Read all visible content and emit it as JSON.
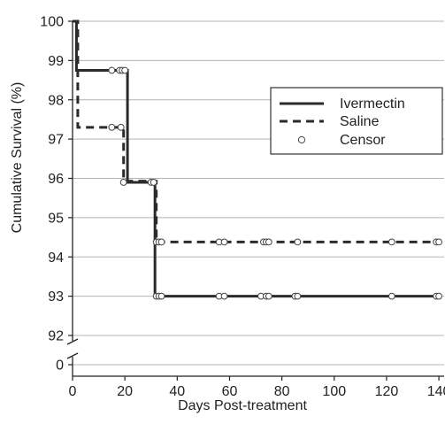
{
  "chart_data": {
    "type": "line",
    "title": "",
    "xlabel": "Days Post-treatment",
    "ylabel": "Cumulative Survival (%)",
    "xlim": [
      0,
      142
    ],
    "x_ticks": [
      0,
      20,
      40,
      60,
      80,
      100,
      120,
      140
    ],
    "y_ticks": [
      0,
      92,
      93,
      94,
      95,
      96,
      97,
      98,
      99,
      100
    ],
    "y_axis_break": {
      "between": [
        0,
        92
      ]
    },
    "grid": "horizontal",
    "legend_position": "right",
    "series": [
      {
        "name": "Ivermectin",
        "style": "solid",
        "color": "#2b2b2b",
        "steps": [
          [
            0,
            100
          ],
          [
            1.5,
            98.75
          ],
          [
            21,
            95.9
          ],
          [
            31.5,
            93.0
          ],
          [
            140,
            93.0
          ]
        ]
      },
      {
        "name": "Saline",
        "style": "dashed",
        "color": "#2b2b2b",
        "steps": [
          [
            0,
            100
          ],
          [
            2,
            97.3
          ],
          [
            19.5,
            95.93
          ],
          [
            32,
            94.38
          ],
          [
            140,
            94.38
          ]
        ]
      }
    ],
    "censor": {
      "name": "Censor",
      "points": [
        [
          15,
          98.75
        ],
        [
          18,
          98.75
        ],
        [
          19,
          98.75
        ],
        [
          20,
          98.75
        ],
        [
          15,
          97.3
        ],
        [
          18.5,
          97.3
        ],
        [
          19.5,
          95.9
        ],
        [
          30,
          95.9
        ],
        [
          31,
          95.9
        ],
        [
          32,
          94.38
        ],
        [
          33,
          94.38
        ],
        [
          34,
          94.38
        ],
        [
          56,
          94.38
        ],
        [
          58,
          94.38
        ],
        [
          73,
          94.38
        ],
        [
          74,
          94.38
        ],
        [
          75,
          94.38
        ],
        [
          86,
          94.38
        ],
        [
          122,
          94.38
        ],
        [
          139,
          94.38
        ],
        [
          140,
          94.38
        ],
        [
          32,
          93.0
        ],
        [
          33,
          93.0
        ],
        [
          34,
          93.0
        ],
        [
          56,
          93.0
        ],
        [
          58,
          93.0
        ],
        [
          72,
          93.0
        ],
        [
          74,
          93.0
        ],
        [
          75,
          93.0
        ],
        [
          85,
          93.0
        ],
        [
          86,
          93.0
        ],
        [
          122,
          93.0
        ],
        [
          139,
          93.0
        ],
        [
          140,
          93.0
        ]
      ]
    }
  }
}
